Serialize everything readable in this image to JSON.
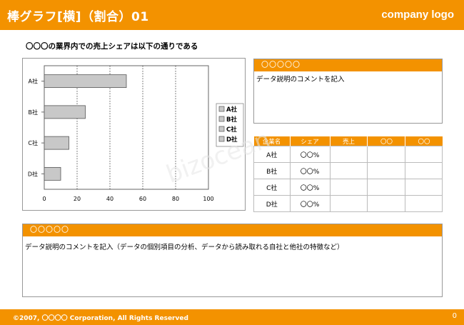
{
  "header": {
    "title": "棒グラフ[横]（割合）01",
    "logo": "company logo"
  },
  "headline": "〇〇〇の業界内での売上シェアは以下の通りである",
  "chart_data": {
    "type": "bar",
    "orientation": "horizontal",
    "categories": [
      "A社",
      "B社",
      "C社",
      "D社"
    ],
    "values": [
      50,
      25,
      15,
      10
    ],
    "xticks": [
      0,
      20,
      40,
      60,
      80,
      100
    ],
    "xlim": [
      0,
      100
    ],
    "legend": [
      "A社",
      "B社",
      "C社",
      "D社"
    ],
    "legend_position": "right",
    "grid": "vertical-dotted",
    "bar_color": "#c8c8c8"
  },
  "comment_box": {
    "heading": "〇〇〇〇〇",
    "text": "データ説明のコメントを記入"
  },
  "table": {
    "headers": [
      "企業名",
      "シェア",
      "売上",
      "〇〇",
      "〇〇"
    ],
    "rows": [
      [
        "A社",
        "〇〇%",
        "",
        "",
        ""
      ],
      [
        "B社",
        "〇〇%",
        "",
        "",
        ""
      ],
      [
        "C社",
        "〇〇%",
        "",
        "",
        ""
      ],
      [
        "D社",
        "〇〇%",
        "",
        "",
        ""
      ]
    ]
  },
  "bottom_box": {
    "heading": "〇〇〇〇〇",
    "text": "データ説明のコメントを記入（データの個別項目の分析、データから読み取れる自社と他社の特徴など）"
  },
  "footer": {
    "copyright": "©2007, 〇〇〇〇 Corporation, All Rights Reserved",
    "page": "0"
  },
  "watermark": "bizocean",
  "colors": {
    "accent": "#f39200",
    "bar": "#c8c8c8"
  }
}
